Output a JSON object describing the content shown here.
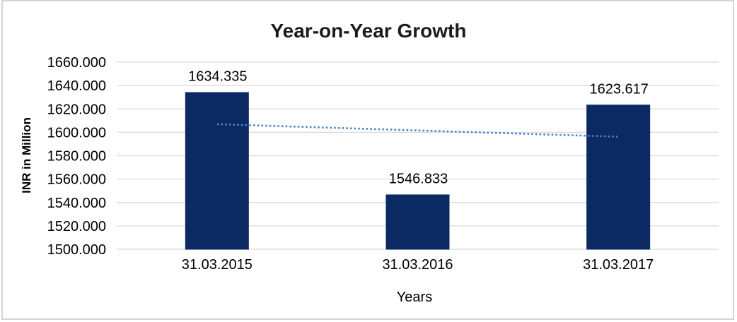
{
  "window": {
    "background": "#ffffff",
    "frame_border_color": "#d4d4d4"
  },
  "chart_data": {
    "type": "bar",
    "title": "Year-on-Year Growth",
    "xlabel": "Years",
    "ylabel": "INR in Million",
    "categories": [
      "31.03.2015",
      "31.03.2016",
      "31.03.2017"
    ],
    "values": [
      1634.335,
      1546.833,
      1623.617
    ],
    "data_labels": [
      "1634.335",
      "1546.833",
      "1623.617"
    ],
    "ylim": [
      1500,
      1660
    ],
    "ytick_step": 20,
    "ytick_labels": [
      "1500.000",
      "1520.000",
      "1540.000",
      "1560.000",
      "1580.000",
      "1600.000",
      "1620.000",
      "1640.000",
      "1660.000"
    ],
    "grid": true,
    "legend": "none",
    "bar_color": "#0b2a63",
    "gridline_color": "#d9d9d9",
    "text_color": "#000000",
    "title_color": "#1c1c1c",
    "trendline": {
      "type": "linear",
      "style": "dotted",
      "color": "#4d82c5"
    }
  }
}
